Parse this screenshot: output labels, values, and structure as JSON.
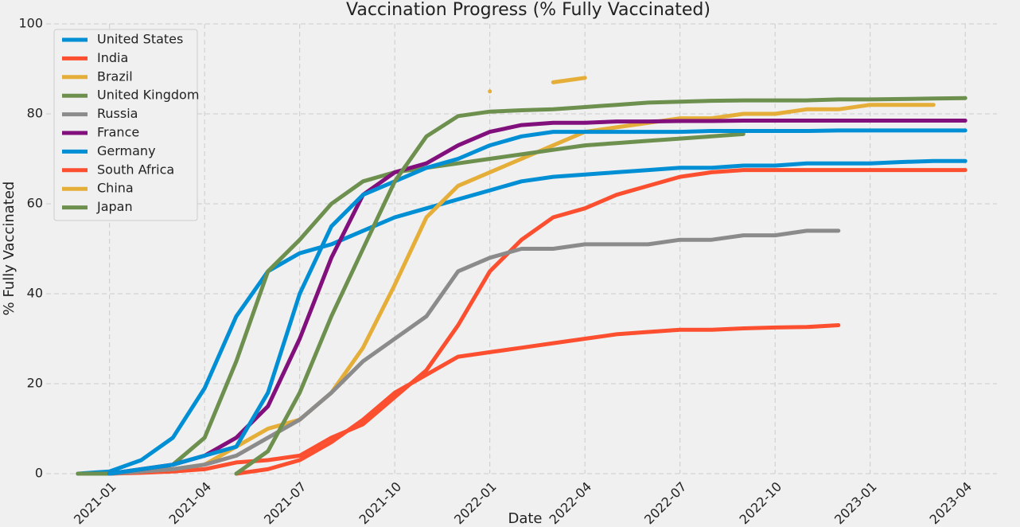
{
  "chart_data": {
    "type": "line",
    "title": "Vaccination Progress (% Fully Vaccinated)",
    "xlabel": "Date",
    "ylabel": "% Fully Vaccinated",
    "x": [
      "2020-12",
      "2021-01",
      "2021-02",
      "2021-03",
      "2021-04",
      "2021-05",
      "2021-06",
      "2021-07",
      "2021-08",
      "2021-09",
      "2021-10",
      "2021-11",
      "2021-12",
      "2022-01",
      "2022-02",
      "2022-03",
      "2022-04",
      "2022-05",
      "2022-06",
      "2022-07",
      "2022-08",
      "2022-09",
      "2022-10",
      "2022-11",
      "2022-12",
      "2023-01",
      "2023-02",
      "2023-03",
      "2023-04"
    ],
    "xlim": [
      "2020-11",
      "2023-05"
    ],
    "xticks": [
      "2021-01",
      "2021-04",
      "2021-07",
      "2021-10",
      "2022-01",
      "2022-04",
      "2022-07",
      "2022-10",
      "2023-01",
      "2023-04"
    ],
    "ylim": [
      0,
      100
    ],
    "yticks": [
      0,
      20,
      40,
      60,
      80,
      100
    ],
    "grid": true,
    "legend": "upper left",
    "series": [
      {
        "name": "United States",
        "color": "#008fd5",
        "values": [
          0,
          0.5,
          3,
          8,
          19,
          35,
          45,
          49,
          51,
          54,
          57,
          59,
          61,
          63,
          65,
          66,
          66.5,
          67,
          67.5,
          68,
          68,
          68.5,
          68.5,
          69,
          69,
          69,
          69.3,
          69.5,
          69.5
        ]
      },
      {
        "name": "India",
        "color": "#fc4f30",
        "values": [
          null,
          0,
          0.2,
          0.5,
          1,
          2.5,
          3,
          4,
          8,
          11,
          17,
          23,
          33,
          45,
          52,
          57,
          59,
          62,
          64,
          66,
          67,
          67.5,
          67.5,
          67.5,
          67.5,
          67.5,
          67.5,
          67.5,
          67.5
        ]
      },
      {
        "name": "Brazil",
        "color": "#e5ae38",
        "values": [
          null,
          0,
          0.5,
          1,
          2,
          6,
          10,
          12,
          18,
          28,
          42,
          57,
          64,
          67,
          70,
          73,
          76,
          77,
          78,
          79,
          79,
          80,
          80,
          81,
          81,
          82,
          82,
          82,
          null
        ]
      },
      {
        "name": "United Kingdom",
        "color": "#6d904f",
        "values": [
          0,
          0,
          0.5,
          2,
          8,
          25,
          45,
          52,
          60,
          65,
          67,
          68,
          69,
          70,
          71,
          72,
          73,
          73.5,
          74,
          74.5,
          75,
          75.5,
          null,
          null,
          null,
          null,
          null,
          null,
          null
        ]
      },
      {
        "name": "Russia",
        "color": "#8b8b8b",
        "values": [
          null,
          0,
          0.5,
          1,
          2,
          4,
          8,
          12,
          18,
          25,
          30,
          35,
          45,
          48,
          50,
          50,
          51,
          51,
          51,
          52,
          52,
          53,
          53,
          54,
          54,
          null,
          null,
          null,
          null
        ]
      },
      {
        "name": "France",
        "color": "#810f7c",
        "values": [
          null,
          0,
          1,
          2,
          4,
          8,
          15,
          30,
          48,
          62,
          67,
          69,
          73,
          76,
          77.5,
          78,
          78,
          78.3,
          78.3,
          78.4,
          78.4,
          78.5,
          78.5,
          78.5,
          78.5,
          78.5,
          78.5,
          78.5,
          78.5
        ]
      },
      {
        "name": "Germany",
        "color": "#008fd5",
        "values": [
          null,
          0,
          1,
          2,
          4,
          6,
          18,
          40,
          55,
          62,
          65,
          68,
          70,
          73,
          75,
          76,
          76,
          76,
          76,
          76,
          76.2,
          76.2,
          76.2,
          76.2,
          76.3,
          76.3,
          76.3,
          76.3,
          76.3
        ]
      },
      {
        "name": "South Africa",
        "color": "#fc4f30",
        "values": [
          null,
          null,
          null,
          null,
          null,
          0,
          1,
          3,
          7,
          12,
          18,
          22,
          26,
          27,
          28,
          29,
          30,
          31,
          31.5,
          32,
          32,
          32.3,
          32.5,
          32.6,
          33,
          null,
          null,
          null,
          null
        ]
      },
      {
        "name": "China",
        "color": "#e5ae38",
        "values": [
          null,
          null,
          null,
          null,
          null,
          null,
          null,
          null,
          null,
          null,
          null,
          null,
          null,
          85,
          null,
          87,
          88,
          null,
          null,
          null,
          null,
          null,
          null,
          null,
          null,
          null,
          null,
          null,
          null
        ]
      },
      {
        "name": "Japan",
        "color": "#6d904f",
        "values": [
          null,
          null,
          null,
          null,
          null,
          0,
          5,
          18,
          35,
          50,
          65,
          75,
          79.5,
          80.5,
          80.8,
          81,
          81.5,
          82,
          82.5,
          82.7,
          82.9,
          83,
          83,
          83,
          83.2,
          83.2,
          83.3,
          83.4,
          83.5
        ]
      }
    ]
  }
}
